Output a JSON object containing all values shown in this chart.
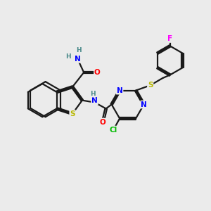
{
  "background_color": "#ebebeb",
  "bond_color": "#1a1a1a",
  "atom_colors": {
    "N": "#0000ff",
    "O": "#ff0000",
    "S": "#b8b800",
    "Cl": "#00bb00",
    "F": "#ff00ff",
    "C": "#1a1a1a",
    "H": "#4a8a8a"
  },
  "figsize": [
    3.0,
    3.0
  ],
  "dpi": 100
}
